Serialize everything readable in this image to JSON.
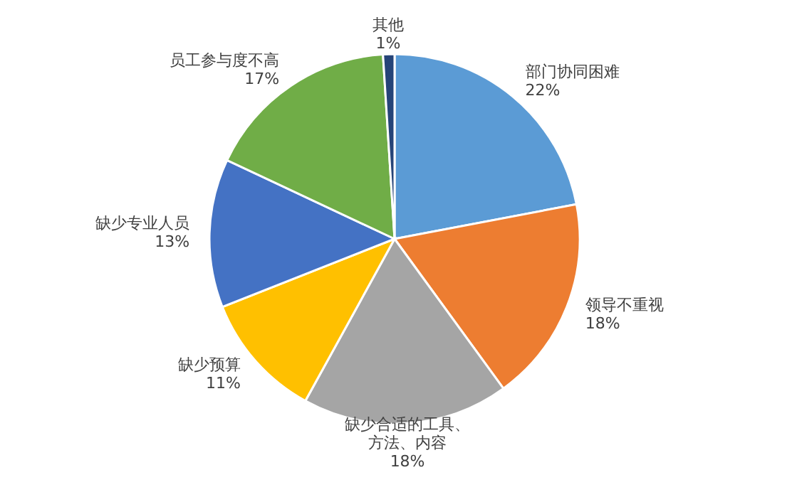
{
  "chart_data": {
    "type": "pie",
    "categories": [
      "部门协同困难",
      "领导不重视",
      "缺少合适的工具、方法、内容",
      "缺少预算",
      "缺少专业人员",
      "员工参与度不高",
      "其他"
    ],
    "values": [
      22,
      18,
      18,
      11,
      13,
      17,
      1
    ],
    "colors": [
      "#5b9bd5",
      "#ed7d31",
      "#a5a5a5",
      "#ffc000",
      "#4472c4",
      "#70ad47",
      "#264478"
    ],
    "value_labels": [
      "22%",
      "18%",
      "18%",
      "11%",
      "13%",
      "17%",
      "1%"
    ]
  }
}
